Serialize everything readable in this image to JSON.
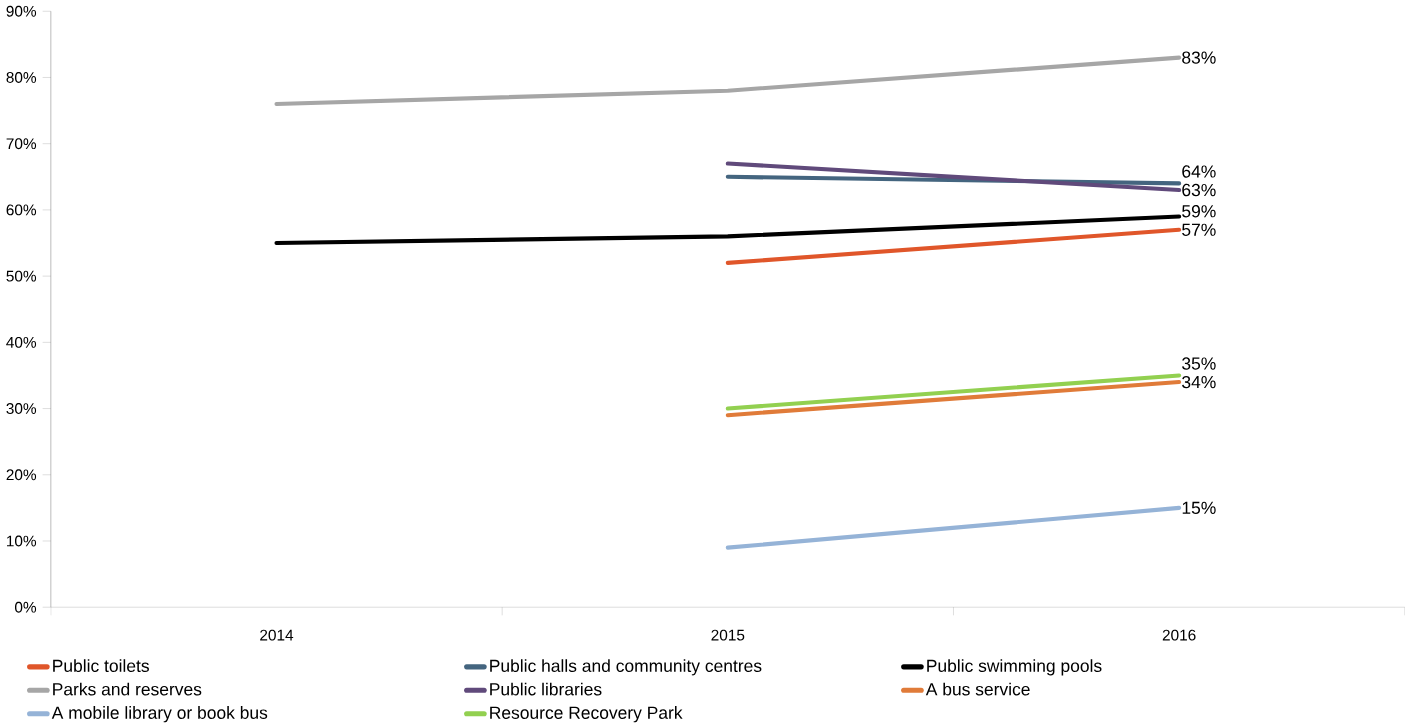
{
  "chart_data": {
    "type": "line",
    "categories": [
      "2014",
      "2015",
      "2016"
    ],
    "series": [
      {
        "name": "Public toilets",
        "color": "#e0562a",
        "values": [
          null,
          52,
          57
        ],
        "value_labels": [
          null,
          null,
          "57%"
        ]
      },
      {
        "name": "Public halls and community centres",
        "color": "#44657f",
        "values": [
          null,
          65,
          64
        ],
        "value_labels": [
          null,
          null,
          "64%"
        ]
      },
      {
        "name": "Public swimming pools",
        "color": "#000000",
        "values": [
          55,
          56,
          59
        ],
        "value_labels": [
          null,
          null,
          "59%"
        ]
      },
      {
        "name": "Parks and reserves",
        "color": "#a6a6a6",
        "values": [
          76,
          78,
          83
        ],
        "value_labels": [
          null,
          null,
          "83%"
        ]
      },
      {
        "name": "Public libraries",
        "color": "#604a7b",
        "values": [
          null,
          67,
          63
        ],
        "value_labels": [
          null,
          null,
          "63%"
        ]
      },
      {
        "name": "A bus service",
        "color": "#e07b39",
        "values": [
          null,
          29,
          34
        ],
        "value_labels": [
          null,
          null,
          "34%"
        ]
      },
      {
        "name": "A mobile library or book bus",
        "color": "#95b3d7",
        "values": [
          null,
          9,
          15
        ],
        "value_labels": [
          null,
          null,
          "15%"
        ]
      },
      {
        "name": "Resource Recovery Park",
        "color": "#92d050",
        "values": [
          null,
          30,
          35
        ],
        "value_labels": [
          null,
          null,
          "35%"
        ]
      }
    ],
    "ylim": [
      0,
      90
    ],
    "yticks": [
      {
        "value": 0,
        "label": "0%"
      },
      {
        "value": 10,
        "label": "10%"
      },
      {
        "value": 20,
        "label": "20%"
      },
      {
        "value": 30,
        "label": "30%"
      },
      {
        "value": 40,
        "label": "40%"
      },
      {
        "value": 50,
        "label": "50%"
      },
      {
        "value": 60,
        "label": "60%"
      },
      {
        "value": 70,
        "label": "70%"
      },
      {
        "value": 80,
        "label": "80%"
      },
      {
        "value": 90,
        "label": "90%"
      }
    ],
    "legend": "bottom",
    "marker": "none",
    "line_style": "solid",
    "grid": false
  }
}
